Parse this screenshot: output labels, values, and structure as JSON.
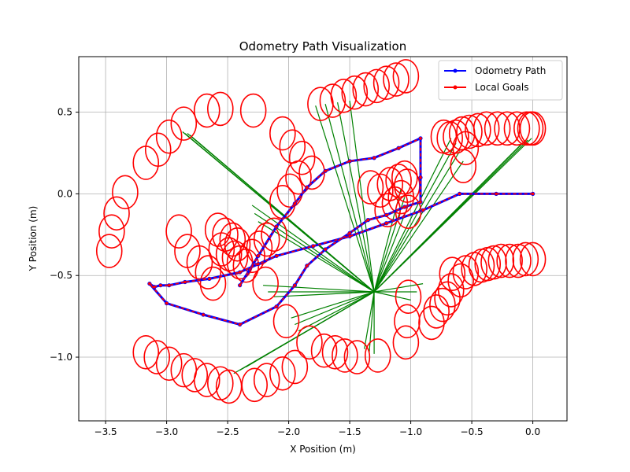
{
  "chart_data": {
    "type": "line",
    "title": "Odometry Path Visualization",
    "xlabel": "X Position (m)",
    "ylabel": "Y Position (m)",
    "xlim": [
      -3.72,
      0.28
    ],
    "ylim": [
      -1.39,
      0.84
    ],
    "xticks": [
      -3.5,
      -3.0,
      -2.5,
      -2.0,
      -1.5,
      -1.0,
      -0.5,
      0.0
    ],
    "xtick_labels": [
      "−3.5",
      "−3.0",
      "−2.5",
      "−2.0",
      "−1.5",
      "−1.0",
      "−0.5",
      "0.0"
    ],
    "yticks": [
      -1.0,
      -0.5,
      0.0,
      0.5
    ],
    "ytick_labels": [
      "−1.0",
      "−0.5",
      "0.0",
      "0.5"
    ],
    "grid": true,
    "legend_position": "top-right",
    "colors": {
      "odometry": "#0000ff",
      "goals": "#ff0000",
      "connections": "#008000"
    },
    "series": [
      {
        "name": "Odometry Path",
        "marker": "dot",
        "x": [
          0.0,
          -0.3,
          -0.6,
          -0.9,
          -1.2,
          -1.5,
          -1.8,
          -2.1,
          -2.25,
          -2.4,
          -2.65,
          -2.85,
          -2.98,
          -3.05,
          -3.1,
          -3.14,
          -3.0,
          -2.7,
          -2.4,
          -2.1,
          -1.95,
          -1.85,
          -1.7,
          -1.5,
          -1.35,
          -1.2,
          -1.05,
          -0.92,
          -0.92,
          -0.92,
          -1.1,
          -1.3,
          -1.5,
          -1.7,
          -1.85,
          -1.95,
          -2.1,
          -2.25,
          -2.4
        ],
        "y": [
          0.0,
          0.0,
          0.0,
          -0.1,
          -0.18,
          -0.26,
          -0.32,
          -0.38,
          -0.43,
          -0.48,
          -0.52,
          -0.54,
          -0.56,
          -0.56,
          -0.57,
          -0.55,
          -0.67,
          -0.74,
          -0.8,
          -0.69,
          -0.56,
          -0.44,
          -0.34,
          -0.24,
          -0.16,
          -0.13,
          -0.08,
          -0.05,
          0.1,
          0.34,
          0.28,
          0.22,
          0.2,
          0.14,
          0.04,
          -0.06,
          -0.2,
          -0.38,
          -0.56
        ]
      },
      {
        "name": "Local Goals",
        "marker": "dot",
        "x": [
          0.0,
          -0.3,
          -0.6,
          -0.9,
          -1.2,
          -1.5,
          -1.8,
          -2.1,
          -2.25,
          -2.4,
          -2.65,
          -2.85,
          -2.98,
          -3.05,
          -3.1,
          -3.14,
          -3.0,
          -2.7,
          -2.4,
          -2.1,
          -1.95,
          -1.85,
          -1.7,
          -1.5,
          -1.35,
          -1.2,
          -1.05,
          -0.92,
          -0.92,
          -0.92,
          -1.1,
          -1.3,
          -1.5,
          -1.7,
          -1.85,
          -1.95,
          -2.1,
          -2.25,
          -2.4
        ],
        "y": [
          0.0,
          0.0,
          0.0,
          -0.1,
          -0.18,
          -0.26,
          -0.32,
          -0.38,
          -0.43,
          -0.48,
          -0.52,
          -0.54,
          -0.56,
          -0.56,
          -0.57,
          -0.55,
          -0.67,
          -0.74,
          -0.8,
          -0.69,
          -0.56,
          -0.44,
          -0.34,
          -0.24,
          -0.16,
          -0.13,
          -0.08,
          -0.05,
          0.1,
          0.34,
          0.28,
          0.22,
          0.2,
          0.14,
          0.04,
          -0.06,
          -0.2,
          -0.38,
          -0.56
        ]
      }
    ],
    "goal_circles": [
      [
        -3.47,
        -0.35
      ],
      [
        -3.45,
        -0.23
      ],
      [
        -3.41,
        -0.12
      ],
      [
        -3.34,
        0.01
      ],
      [
        -3.17,
        0.19
      ],
      [
        -3.07,
        0.27
      ],
      [
        -2.98,
        0.35
      ],
      [
        -2.86,
        0.43
      ],
      [
        -2.67,
        0.51
      ],
      [
        -2.56,
        0.52
      ],
      [
        -2.29,
        0.51
      ],
      [
        -2.05,
        0.37
      ],
      [
        -1.97,
        0.29
      ],
      [
        -1.89,
        0.22
      ],
      [
        -1.81,
        0.13
      ],
      [
        -1.74,
        0.55
      ],
      [
        -1.64,
        0.57
      ],
      [
        -1.55,
        0.6
      ],
      [
        -1.46,
        0.62
      ],
      [
        -1.37,
        0.64
      ],
      [
        -1.28,
        0.66
      ],
      [
        -1.2,
        0.68
      ],
      [
        -1.12,
        0.7
      ],
      [
        -1.04,
        0.72
      ],
      [
        -0.73,
        0.35
      ],
      [
        -0.68,
        0.34
      ],
      [
        -0.63,
        0.35
      ],
      [
        -0.58,
        0.37
      ],
      [
        -0.52,
        0.38
      ],
      [
        -0.45,
        0.39
      ],
      [
        -0.38,
        0.4
      ],
      [
        -0.29,
        0.4
      ],
      [
        -0.21,
        0.4
      ],
      [
        -0.13,
        0.4
      ],
      [
        -0.05,
        0.4
      ],
      [
        -0.02,
        0.4
      ],
      [
        0.0,
        0.4
      ],
      [
        -0.57,
        0.17
      ],
      [
        -0.55,
        0.28
      ],
      [
        -1.92,
        0.1
      ],
      [
        -1.99,
        0.02
      ],
      [
        -2.05,
        -0.05
      ],
      [
        -1.33,
        0.04
      ],
      [
        -1.25,
        0.02
      ],
      [
        -1.17,
        0.06
      ],
      [
        -1.1,
        0.08
      ],
      [
        -1.05,
        0.1
      ],
      [
        -1.03,
        0.05
      ],
      [
        -1.08,
        -0.02
      ],
      [
        -1.13,
        -0.06
      ],
      [
        -1.02,
        -0.11
      ],
      [
        -1.19,
        -0.1
      ],
      [
        -2.9,
        -0.23
      ],
      [
        -2.83,
        -0.35
      ],
      [
        -2.73,
        -0.42
      ],
      [
        -2.66,
        -0.48
      ],
      [
        -2.62,
        -0.55
      ],
      [
        -2.58,
        -0.22
      ],
      [
        -2.52,
        -0.25
      ],
      [
        -2.46,
        -0.28
      ],
      [
        -2.42,
        -0.31
      ],
      [
        -2.55,
        -0.34
      ],
      [
        -2.49,
        -0.37
      ],
      [
        -2.44,
        -0.39
      ],
      [
        -2.4,
        -0.42
      ],
      [
        -2.35,
        -0.44
      ],
      [
        -2.3,
        -0.38
      ],
      [
        -2.24,
        -0.33
      ],
      [
        -2.18,
        -0.28
      ],
      [
        -2.12,
        -0.25
      ],
      [
        -2.19,
        -0.55
      ],
      [
        -2.02,
        -0.78
      ],
      [
        -1.83,
        -0.91
      ],
      [
        -1.71,
        -0.96
      ],
      [
        -1.62,
        -0.97
      ],
      [
        -1.54,
        -0.99
      ],
      [
        -1.44,
        -1.0
      ],
      [
        -1.27,
        -0.99
      ],
      [
        -1.04,
        -0.91
      ],
      [
        -1.03,
        -0.78
      ],
      [
        -1.02,
        -0.63
      ],
      [
        -0.83,
        -0.79
      ],
      [
        -0.79,
        -0.72
      ],
      [
        -0.74,
        -0.68
      ],
      [
        -0.7,
        -0.64
      ],
      [
        -0.67,
        -0.59
      ],
      [
        -0.66,
        -0.49
      ],
      [
        -0.59,
        -0.53
      ],
      [
        -0.55,
        -0.48
      ],
      [
        -0.48,
        -0.46
      ],
      [
        -0.42,
        -0.44
      ],
      [
        -0.37,
        -0.43
      ],
      [
        -0.32,
        -0.42
      ],
      [
        -0.26,
        -0.41
      ],
      [
        -0.19,
        -0.41
      ],
      [
        -0.12,
        -0.41
      ],
      [
        -0.06,
        -0.4
      ],
      [
        0.0,
        -0.4
      ],
      [
        -3.17,
        -0.97
      ],
      [
        -3.08,
        -1.0
      ],
      [
        -2.98,
        -1.04
      ],
      [
        -2.86,
        -1.08
      ],
      [
        -2.77,
        -1.11
      ],
      [
        -2.67,
        -1.14
      ],
      [
        -2.56,
        -1.16
      ],
      [
        -2.49,
        -1.18
      ],
      [
        -2.28,
        -1.17
      ],
      [
        -2.18,
        -1.14
      ],
      [
        -2.05,
        -1.1
      ],
      [
        -1.95,
        -1.06
      ]
    ],
    "connection_center": [
      -1.3,
      -0.6
    ],
    "connection_targets": [
      [
        -2.87,
        0.38
      ],
      [
        -2.85,
        0.37
      ],
      [
        -2.83,
        0.37
      ],
      [
        -2.81,
        0.36
      ],
      [
        -1.78,
        0.54
      ],
      [
        -1.7,
        0.55
      ],
      [
        -1.6,
        0.56
      ],
      [
        -1.5,
        0.57
      ],
      [
        -0.57,
        0.2
      ],
      [
        -0.6,
        0.26
      ],
      [
        -0.63,
        0.31
      ],
      [
        -0.67,
        0.34
      ],
      [
        -0.1,
        0.3
      ],
      [
        -0.07,
        0.32
      ],
      [
        -0.04,
        0.33
      ],
      [
        -0.01,
        0.34
      ],
      [
        -0.9,
        -0.55
      ],
      [
        -0.95,
        -0.6
      ],
      [
        -1.0,
        -0.65
      ],
      [
        -2.21,
        -0.56
      ],
      [
        -2.17,
        -0.6
      ],
      [
        -2.12,
        -0.63
      ],
      [
        -2.3,
        -0.07
      ],
      [
        -2.28,
        -0.12
      ],
      [
        -2.25,
        -0.17
      ],
      [
        -1.98,
        -0.76
      ],
      [
        -1.95,
        -0.8
      ],
      [
        -1.92,
        -0.84
      ],
      [
        -1.38,
        -0.95
      ],
      [
        -1.34,
        -0.97
      ],
      [
        -1.3,
        -0.98
      ],
      [
        -1.02,
        -0.07
      ],
      [
        -1.05,
        -0.02
      ],
      [
        -1.08,
        0.03
      ],
      [
        -2.45,
        -1.1
      ],
      [
        -2.4,
        -1.08
      ],
      [
        -2.35,
        -1.06
      ]
    ]
  },
  "legend": {
    "items": [
      {
        "label": "Odometry Path",
        "color": "#0000ff"
      },
      {
        "label": "Local Goals",
        "color": "#ff0000"
      }
    ]
  }
}
